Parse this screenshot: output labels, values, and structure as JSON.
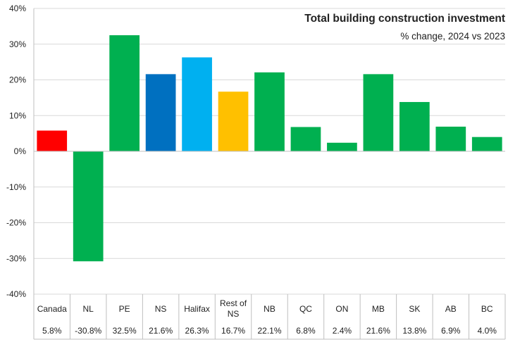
{
  "chart_data": {
    "type": "bar",
    "title": "Total building construction investment",
    "subtitle": "% change, 2024 vs 2023",
    "categories": [
      "Canada",
      "NL",
      "PE",
      "NS",
      "Halifax",
      "Rest of NS",
      "NB",
      "QC",
      "ON",
      "MB",
      "SK",
      "AB",
      "BC"
    ],
    "values": [
      5.8,
      -30.8,
      32.5,
      21.6,
      26.3,
      16.7,
      22.1,
      6.8,
      2.4,
      21.6,
      13.8,
      6.9,
      4.0
    ],
    "value_labels": [
      "5.8%",
      "-30.8%",
      "32.5%",
      "21.6%",
      "26.3%",
      "16.7%",
      "22.1%",
      "6.8%",
      "2.4%",
      "21.6%",
      "13.8%",
      "6.9%",
      "4.0%"
    ],
    "bar_colors": [
      "#ff0000",
      "#00b050",
      "#00b050",
      "#0070c0",
      "#00b0f0",
      "#ffc000",
      "#00b050",
      "#00b050",
      "#00b050",
      "#00b050",
      "#00b050",
      "#00b050",
      "#00b050"
    ],
    "ylim": [
      -40,
      40
    ],
    "yticks": [
      -40,
      -30,
      -20,
      -10,
      0,
      10,
      20,
      30,
      40
    ],
    "ytick_labels": [
      "-40%",
      "-30%",
      "-20%",
      "-10%",
      "0%",
      "10%",
      "20%",
      "30%",
      "40%"
    ],
    "grid": true,
    "legend": "none",
    "xlabel": "",
    "ylabel": ""
  },
  "colors": {
    "grid": "#d9d9d9",
    "axis": "#bfbfbf",
    "text": "#222222"
  }
}
